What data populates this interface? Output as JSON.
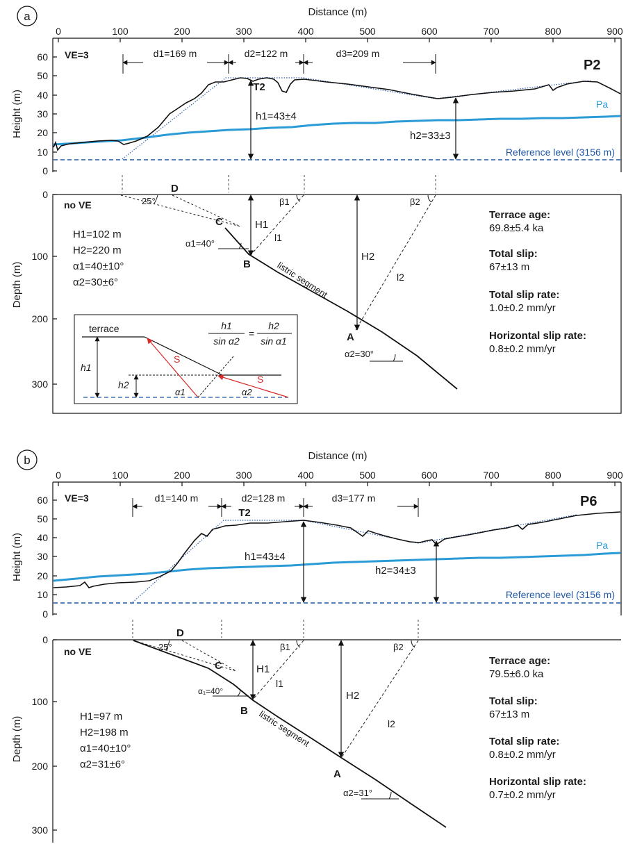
{
  "panels": [
    {
      "letter": "a",
      "x_axis_title": "Distance (m)",
      "x_ticks": [
        "0",
        "100",
        "200",
        "300",
        "400",
        "500",
        "600",
        "700",
        "800",
        "900"
      ],
      "height_axis_title": "Height (m)",
      "height_ticks": [
        "0",
        "10",
        "20",
        "30",
        "40",
        "50",
        "60"
      ],
      "depth_axis_title": "Depth (m)",
      "depth_ticks": [
        "0",
        "100",
        "200",
        "300"
      ],
      "ve": "VE=3",
      "profile": "P2",
      "terrace": "T2",
      "d1": "d1=169 m",
      "d2": "d2=122 m",
      "d3": "d3=209 m",
      "h1": "h1=43±4",
      "h2": "h2=33±3",
      "pa": "Pa",
      "reference": "Reference level (3156 m)",
      "no_ve": "no VE",
      "H1": "H1=102 m",
      "H2": "H2=220 m",
      "alpha1": "α1=40±10°",
      "alpha2": "α2=30±6°",
      "pt_D": "D",
      "pt_C": "C",
      "pt_B": "B",
      "pt_A": "A",
      "ang25": "25°",
      "alpha1_angle": "α1=40°",
      "alpha2_angle": "α2=30°",
      "beta1": "β1",
      "beta2": "β2",
      "H1_arrow": "H1",
      "H2_arrow": "H2",
      "l1": "l1",
      "l2": "l2",
      "listric": "listric segment",
      "terrace_age_title": "Terrace age:",
      "terrace_age": "69.8±5.4 ka",
      "total_slip_title": "Total slip:",
      "total_slip": "67±13 m",
      "total_slip_rate_title": "Total slip rate:",
      "total_slip_rate": "1.0±0.2 mm/yr",
      "horiz_title": "Horizontal slip rate:",
      "horiz": "0.8±0.2 mm/yr"
    },
    {
      "letter": "b",
      "x_axis_title": "Distance (m)",
      "x_ticks": [
        "0",
        "100",
        "200",
        "300",
        "400",
        "500",
        "600",
        "700",
        "800",
        "900"
      ],
      "height_axis_title": "Height (m)",
      "height_ticks": [
        "0",
        "10",
        "20",
        "30",
        "40",
        "50",
        "60"
      ],
      "depth_axis_title": "Depth (m)",
      "depth_ticks": [
        "0",
        "100",
        "200",
        "300"
      ],
      "ve": "VE=3",
      "profile": "P6",
      "terrace": "T2",
      "d1": "d1=140 m",
      "d2": "d2=128 m",
      "d3": "d3=177 m",
      "h1": "h1=43±4",
      "h2": "h2=34±3",
      "pa": "Pa",
      "reference": "Reference level (3156 m)",
      "no_ve": "no VE",
      "H1": "H1=97 m",
      "H2": "H2=198 m",
      "alpha1": "α1=40±10°",
      "alpha2": "α2=31±6°",
      "pt_D": "D",
      "pt_C": "C",
      "pt_B": "B",
      "pt_A": "A",
      "ang25": "25°",
      "alpha1_angle": "α₁=40°",
      "alpha2_angle": "α2=31°",
      "beta1": "β1",
      "beta2": "β2",
      "H1_arrow": "H1",
      "H2_arrow": "H2",
      "l1": "l1",
      "l2": "l2",
      "listric": "listric segment",
      "terrace_age_title": "Terrace age:",
      "terrace_age": "79.5±6.0 ka",
      "total_slip_title": "Total slip:",
      "total_slip": "67±13 m",
      "total_slip_rate_title": "Total slip rate:",
      "total_slip_rate": "0.8±0.2 mm/yr",
      "horiz_title": "Horizontal slip rate:",
      "horiz": "0.7±0.2 mm/yr"
    }
  ],
  "inset": {
    "terrace": "terrace",
    "h1": "h1",
    "h2": "h2",
    "S1": "S",
    "S2": "S",
    "a1": "α1",
    "a2": "α2",
    "eq_num1": "h1",
    "eq_den1": "sin α2",
    "eq_sign": "=",
    "eq_num2": "h2",
    "eq_den2": "sin α1"
  },
  "colors": {
    "pa": "#2a9bd6",
    "reference": "#1f57a5",
    "slip_vector": "#d42a2a"
  }
}
